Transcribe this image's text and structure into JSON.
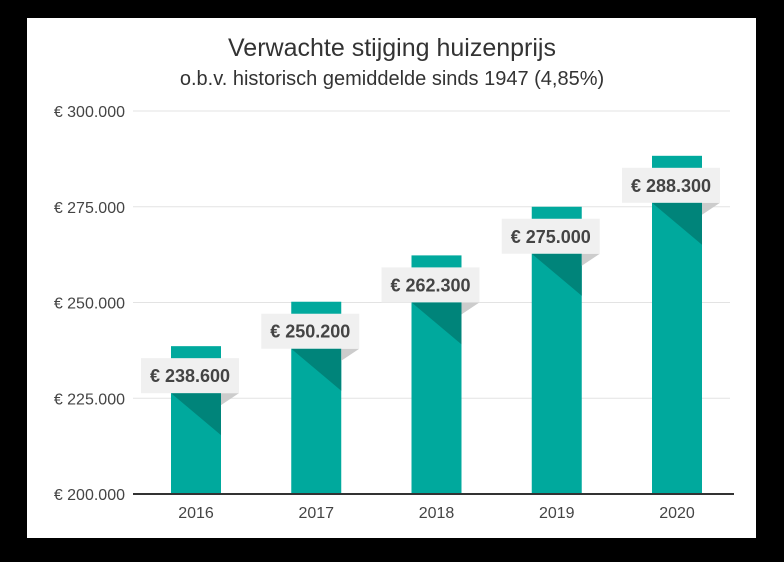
{
  "chart_data": {
    "type": "bar",
    "title": "Verwachte stijging huizenprijs",
    "subtitle": "o.b.v. historisch gemiddelde sinds 1947 (4,85%)",
    "categories": [
      "2016",
      "2017",
      "2018",
      "2019",
      "2020"
    ],
    "values": [
      238600,
      250200,
      262300,
      275000,
      288300
    ],
    "data_labels": [
      "€ 238.600",
      "€ 250.200",
      "€ 262.300",
      "€ 275.000",
      "€ 288.300"
    ],
    "ylim": [
      200000,
      300000
    ],
    "yticks": [
      200000,
      225000,
      250000,
      275000,
      300000
    ],
    "ytick_labels": [
      "€ 200.000",
      "€ 225.000",
      "€ 250.000",
      "€ 275.000",
      "€ 300.000"
    ],
    "grid": true,
    "colors": {
      "bar": "#00a99d",
      "bar_shade": "#00847a",
      "label_bg": "#f0f0f0",
      "label_fold": "#cccccc"
    }
  }
}
